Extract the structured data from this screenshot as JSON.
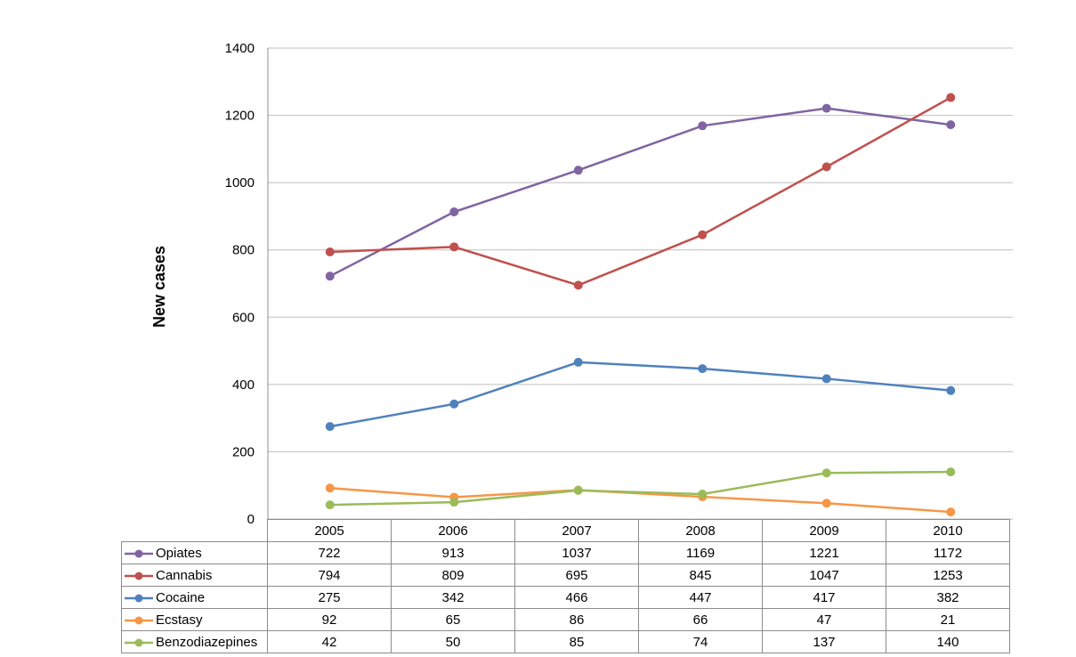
{
  "chart_data": {
    "type": "line",
    "title": "",
    "xlabel": "",
    "ylabel": "New cases",
    "ylim": [
      0,
      1400
    ],
    "yticks": [
      0,
      200,
      400,
      600,
      800,
      1000,
      1200,
      1400
    ],
    "grid": true,
    "legend": "data-table",
    "categories": [
      "2005",
      "2006",
      "2007",
      "2008",
      "2009",
      "2010"
    ],
    "series": [
      {
        "name": "Opiates",
        "color": "#8064a2",
        "values": [
          722,
          913,
          1037,
          1169,
          1221,
          1172
        ]
      },
      {
        "name": "Cannabis",
        "color": "#c0504d",
        "values": [
          794,
          809,
          695,
          845,
          1047,
          1253
        ]
      },
      {
        "name": "Cocaine",
        "color": "#4f81bd",
        "values": [
          275,
          342,
          466,
          447,
          417,
          382
        ]
      },
      {
        "name": "Ecstasy",
        "color": "#f79646",
        "values": [
          92,
          65,
          86,
          66,
          47,
          21
        ]
      },
      {
        "name": "Benzodiazepines",
        "color": "#9bbb59",
        "values": [
          42,
          50,
          85,
          74,
          137,
          140
        ]
      }
    ]
  }
}
